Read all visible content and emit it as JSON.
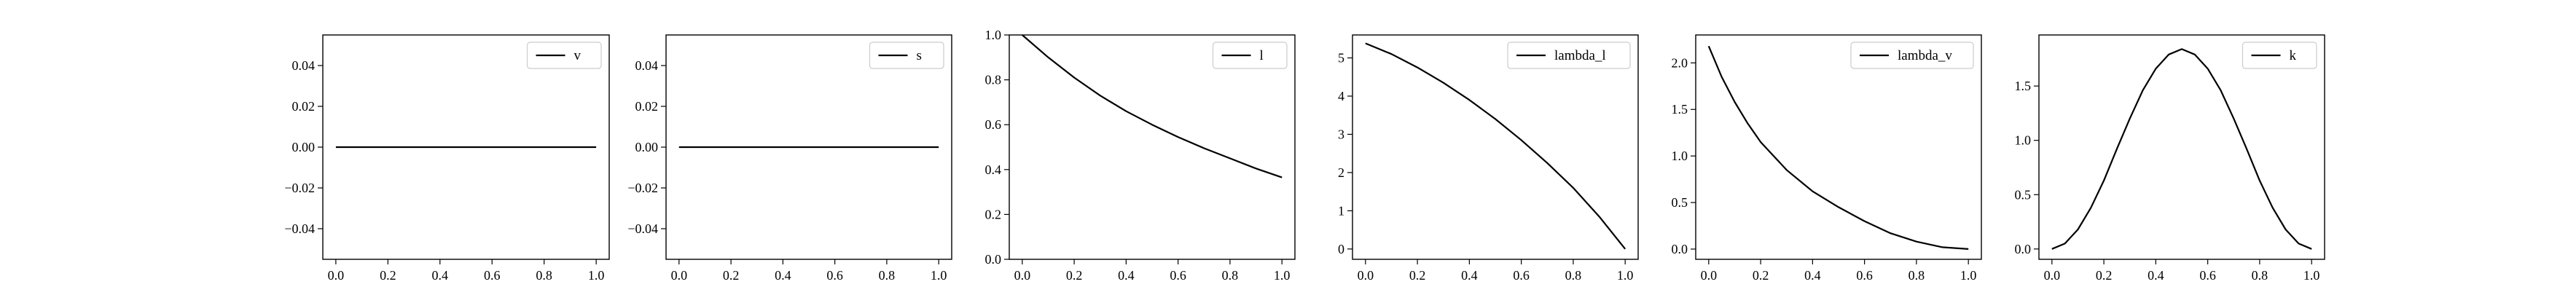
{
  "figure": {
    "background": "#ffffff",
    "line_color": "#000000"
  },
  "chart_data": [
    {
      "type": "line",
      "legend": "v",
      "legend_position": "upper right",
      "grid": false,
      "xlim": [
        -0.05,
        1.05
      ],
      "ylim": [
        -0.055,
        0.055
      ],
      "x_ticks": [
        0.0,
        0.2,
        0.4,
        0.6,
        0.8,
        1.0
      ],
      "x_tick_labels": [
        "0.0",
        "0.2",
        "0.4",
        "0.6",
        "0.8",
        "1.0"
      ],
      "y_ticks": [
        -0.04,
        -0.02,
        0.0,
        0.02,
        0.04
      ],
      "y_tick_labels": [
        "−0.04",
        "−0.02",
        "0.00",
        "0.02",
        "0.04"
      ],
      "series": [
        {
          "name": "v",
          "x": [
            0.0,
            0.2,
            0.4,
            0.6,
            0.8,
            1.0
          ],
          "y": [
            0.0,
            0.0,
            0.0,
            0.0,
            0.0,
            0.0
          ]
        }
      ]
    },
    {
      "type": "line",
      "legend": "s",
      "legend_position": "upper right",
      "grid": false,
      "xlim": [
        -0.05,
        1.05
      ],
      "ylim": [
        -0.055,
        0.055
      ],
      "x_ticks": [
        0.0,
        0.2,
        0.4,
        0.6,
        0.8,
        1.0
      ],
      "x_tick_labels": [
        "0.0",
        "0.2",
        "0.4",
        "0.6",
        "0.8",
        "1.0"
      ],
      "y_ticks": [
        -0.04,
        -0.02,
        0.0,
        0.02,
        0.04
      ],
      "y_tick_labels": [
        "−0.04",
        "−0.02",
        "0.00",
        "0.02",
        "0.04"
      ],
      "series": [
        {
          "name": "s",
          "x": [
            0.0,
            0.2,
            0.4,
            0.6,
            0.8,
            1.0
          ],
          "y": [
            0.0,
            0.0,
            0.0,
            0.0,
            0.0,
            0.0
          ]
        }
      ]
    },
    {
      "type": "line",
      "legend": "l",
      "legend_position": "upper right",
      "grid": false,
      "xlim": [
        -0.05,
        1.05
      ],
      "ylim": [
        0.0,
        1.0
      ],
      "x_ticks": [
        0.0,
        0.2,
        0.4,
        0.6,
        0.8,
        1.0
      ],
      "x_tick_labels": [
        "0.0",
        "0.2",
        "0.4",
        "0.6",
        "0.8",
        "1.0"
      ],
      "y_ticks": [
        0.0,
        0.2,
        0.4,
        0.6,
        0.8,
        1.0
      ],
      "y_tick_labels": [
        "0.0",
        "0.2",
        "0.4",
        "0.6",
        "0.8",
        "1.0"
      ],
      "series": [
        {
          "name": "l",
          "x": [
            0.0,
            0.1,
            0.2,
            0.3,
            0.4,
            0.5,
            0.6,
            0.7,
            0.8,
            0.9,
            1.0
          ],
          "y": [
            1.0,
            0.9,
            0.81,
            0.73,
            0.66,
            0.6,
            0.545,
            0.495,
            0.45,
            0.405,
            0.365
          ]
        }
      ]
    },
    {
      "type": "line",
      "legend": "lambda_l",
      "legend_position": "upper right",
      "grid": false,
      "xlim": [
        -0.05,
        1.05
      ],
      "ylim": [
        -0.27,
        5.6
      ],
      "x_ticks": [
        0.0,
        0.2,
        0.4,
        0.6,
        0.8,
        1.0
      ],
      "x_tick_labels": [
        "0.0",
        "0.2",
        "0.4",
        "0.6",
        "0.8",
        "1.0"
      ],
      "y_ticks": [
        0,
        1,
        2,
        3,
        4,
        5
      ],
      "y_tick_labels": [
        "0",
        "1",
        "2",
        "3",
        "4",
        "5"
      ],
      "series": [
        {
          "name": "lambda_l",
          "x": [
            0.0,
            0.1,
            0.2,
            0.3,
            0.4,
            0.5,
            0.6,
            0.7,
            0.8,
            0.9,
            1.0
          ],
          "y": [
            5.38,
            5.1,
            4.75,
            4.35,
            3.9,
            3.4,
            2.85,
            2.25,
            1.6,
            0.85,
            0.0
          ]
        }
      ]
    },
    {
      "type": "line",
      "legend": "lambda_v",
      "legend_position": "upper right",
      "grid": false,
      "xlim": [
        -0.05,
        1.05
      ],
      "ylim": [
        -0.11,
        2.3
      ],
      "x_ticks": [
        0.0,
        0.2,
        0.4,
        0.6,
        0.8,
        1.0
      ],
      "x_tick_labels": [
        "0.0",
        "0.2",
        "0.4",
        "0.6",
        "0.8",
        "1.0"
      ],
      "y_ticks": [
        0.0,
        0.5,
        1.0,
        1.5,
        2.0
      ],
      "y_tick_labels": [
        "0.0",
        "0.5",
        "1.0",
        "1.5",
        "2.0"
      ],
      "series": [
        {
          "name": "lambda_v",
          "x": [
            0.0,
            0.05,
            0.1,
            0.15,
            0.2,
            0.3,
            0.4,
            0.5,
            0.6,
            0.7,
            0.8,
            0.9,
            1.0
          ],
          "y": [
            2.18,
            1.85,
            1.58,
            1.35,
            1.15,
            0.85,
            0.62,
            0.45,
            0.3,
            0.17,
            0.08,
            0.02,
            0.0
          ]
        }
      ]
    },
    {
      "type": "line",
      "legend": "k",
      "legend_position": "upper right",
      "grid": false,
      "xlim": [
        -0.05,
        1.05
      ],
      "ylim": [
        -0.095,
        1.97
      ],
      "x_ticks": [
        0.0,
        0.2,
        0.4,
        0.6,
        0.8,
        1.0
      ],
      "x_tick_labels": [
        "0.0",
        "0.2",
        "0.4",
        "0.6",
        "0.8",
        "1.0"
      ],
      "y_ticks": [
        0.0,
        0.5,
        1.0,
        1.5
      ],
      "y_tick_labels": [
        "0.0",
        "0.5",
        "1.0",
        "1.5"
      ],
      "series": [
        {
          "name": "k",
          "x": [
            0.0,
            0.05,
            0.1,
            0.15,
            0.2,
            0.25,
            0.3,
            0.35,
            0.4,
            0.45,
            0.5,
            0.55,
            0.6,
            0.65,
            0.7,
            0.75,
            0.8,
            0.85,
            0.9,
            0.95,
            1.0
          ],
          "y": [
            0.0,
            0.05,
            0.18,
            0.38,
            0.63,
            0.92,
            1.2,
            1.46,
            1.66,
            1.79,
            1.84,
            1.79,
            1.66,
            1.46,
            1.2,
            0.92,
            0.63,
            0.38,
            0.18,
            0.05,
            0.0
          ]
        }
      ]
    }
  ]
}
